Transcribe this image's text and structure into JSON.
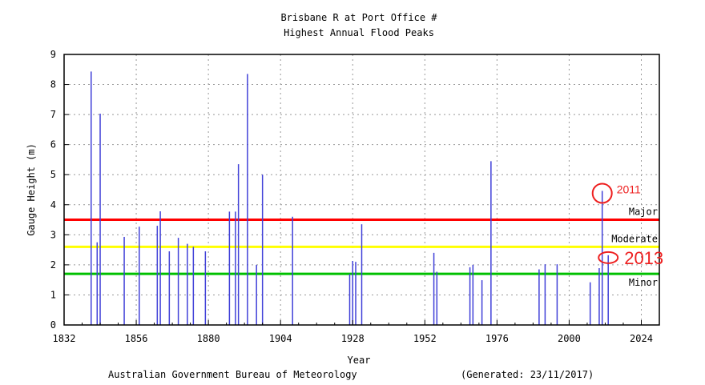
{
  "chart_data": {
    "type": "bar",
    "title": "Brisbane R at Port Office #",
    "subtitle": "Highest Annual Flood Peaks",
    "xlabel": "Year",
    "ylabel": "Gauge Height (m)",
    "xlim": [
      1832,
      2030
    ],
    "ylim": [
      0,
      9
    ],
    "grid": true,
    "x_ticks": [
      1832,
      1856,
      1880,
      1904,
      1928,
      1952,
      1976,
      2000,
      2024
    ],
    "y_ticks": [
      0,
      1,
      2,
      3,
      4,
      5,
      6,
      7,
      8,
      9
    ],
    "bar_color": "#4040d8",
    "x": [
      1841,
      1843,
      1844,
      1852,
      1857,
      1863,
      1864,
      1867,
      1870,
      1873,
      1875,
      1879,
      1887,
      1889,
      1890,
      1893,
      1896,
      1898,
      1908,
      1927,
      1928,
      1929,
      1931,
      1955,
      1956,
      1967,
      1968,
      1971,
      1974,
      1990,
      1992,
      1996,
      2007,
      2010,
      2011,
      2013
    ],
    "values": [
      8.43,
      2.75,
      7.03,
      2.93,
      3.27,
      3.3,
      3.78,
      2.45,
      2.9,
      2.7,
      2.6,
      2.45,
      3.77,
      3.77,
      5.35,
      8.35,
      2.0,
      5.0,
      3.6,
      1.7,
      2.13,
      2.1,
      3.35,
      2.4,
      1.77,
      1.92,
      2.0,
      1.49,
      5.45,
      1.85,
      2.02,
      2.02,
      1.42,
      1.89,
      4.46,
      2.32
    ],
    "thresholds": [
      {
        "label": "Major",
        "value": 3.5,
        "color": "#ff0000"
      },
      {
        "label": "Moderate",
        "value": 2.6,
        "color": "#ffff00"
      },
      {
        "label": "Minor",
        "value": 1.7,
        "color": "#00c000"
      }
    ],
    "annotations": [
      {
        "label": "2011",
        "year": 2011,
        "value": 4.46
      },
      {
        "label": "2013",
        "year": 2013,
        "value": 2.32
      }
    ]
  },
  "footer": {
    "source": "Australian Government Bureau of Meteorology",
    "generated": "(Generated: 23/11/2017)"
  }
}
